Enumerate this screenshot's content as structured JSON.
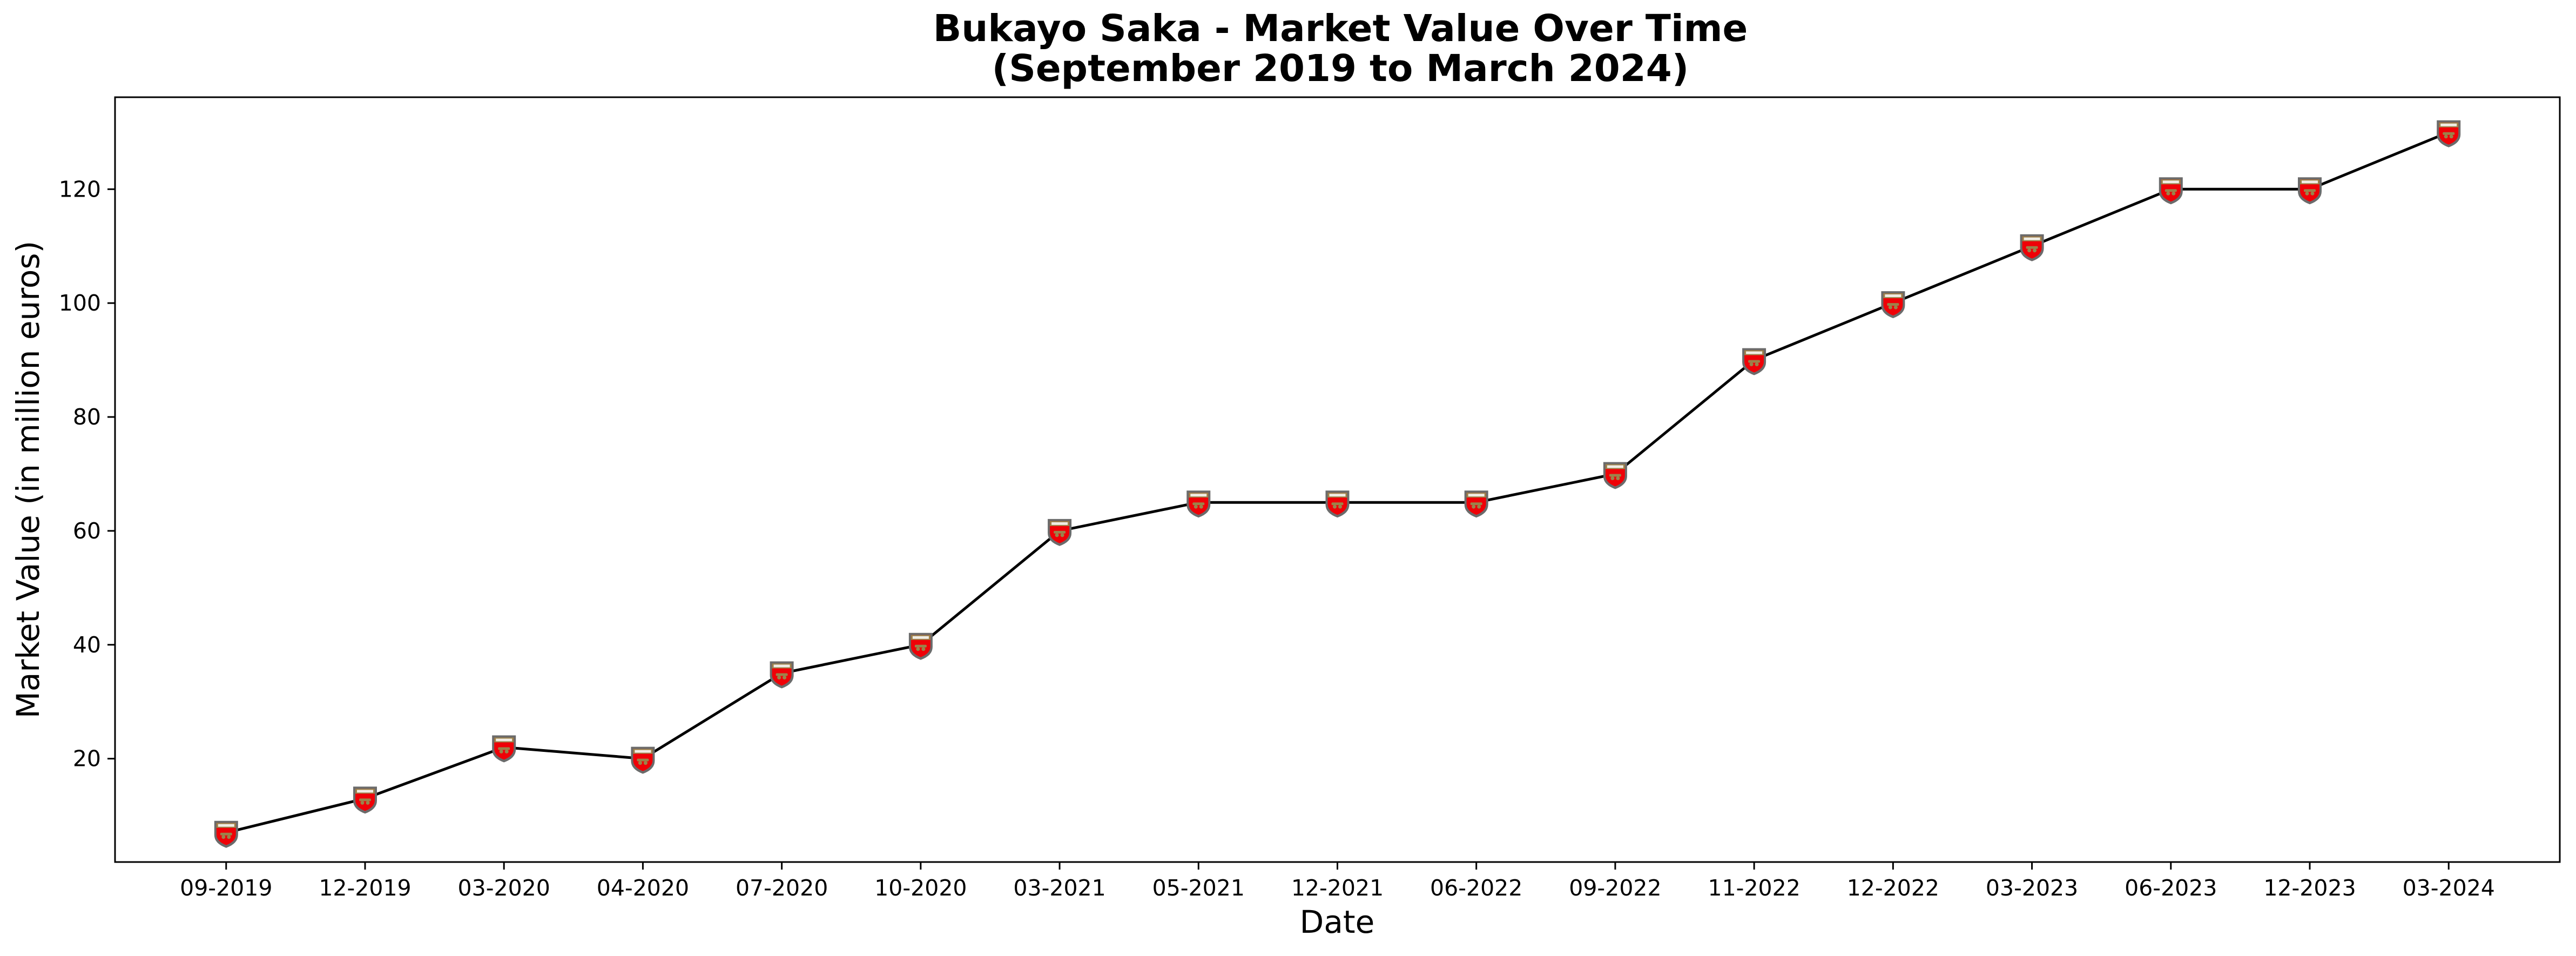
{
  "chart_data": {
    "type": "line",
    "title": "Bukayo Saka - Market Value Over Time",
    "subtitle": "(September 2019 to March 2024)",
    "xlabel": "Date",
    "ylabel": "Market Value (in million euros)",
    "categories": [
      "09-2019",
      "12-2019",
      "03-2020",
      "04-2020",
      "07-2020",
      "10-2020",
      "03-2021",
      "05-2021",
      "12-2021",
      "06-2022",
      "09-2022",
      "11-2022",
      "12-2022",
      "03-2023",
      "06-2023",
      "12-2023",
      "03-2024"
    ],
    "values": [
      7,
      13,
      22,
      20,
      35,
      40,
      60,
      65,
      65,
      65,
      70,
      90,
      100,
      110,
      120,
      120,
      130
    ],
    "ylim": [
      1.85,
      136.15
    ],
    "yticks": [
      20,
      40,
      60,
      80,
      100,
      120
    ],
    "grid": false,
    "legend": "none",
    "marker": "arsenal-crest-icon",
    "colors": {
      "line": "#000000",
      "marker_fill": "#ef0107",
      "marker_trim": "#9c824a",
      "marker_outline": "#6b6b6b"
    }
  }
}
